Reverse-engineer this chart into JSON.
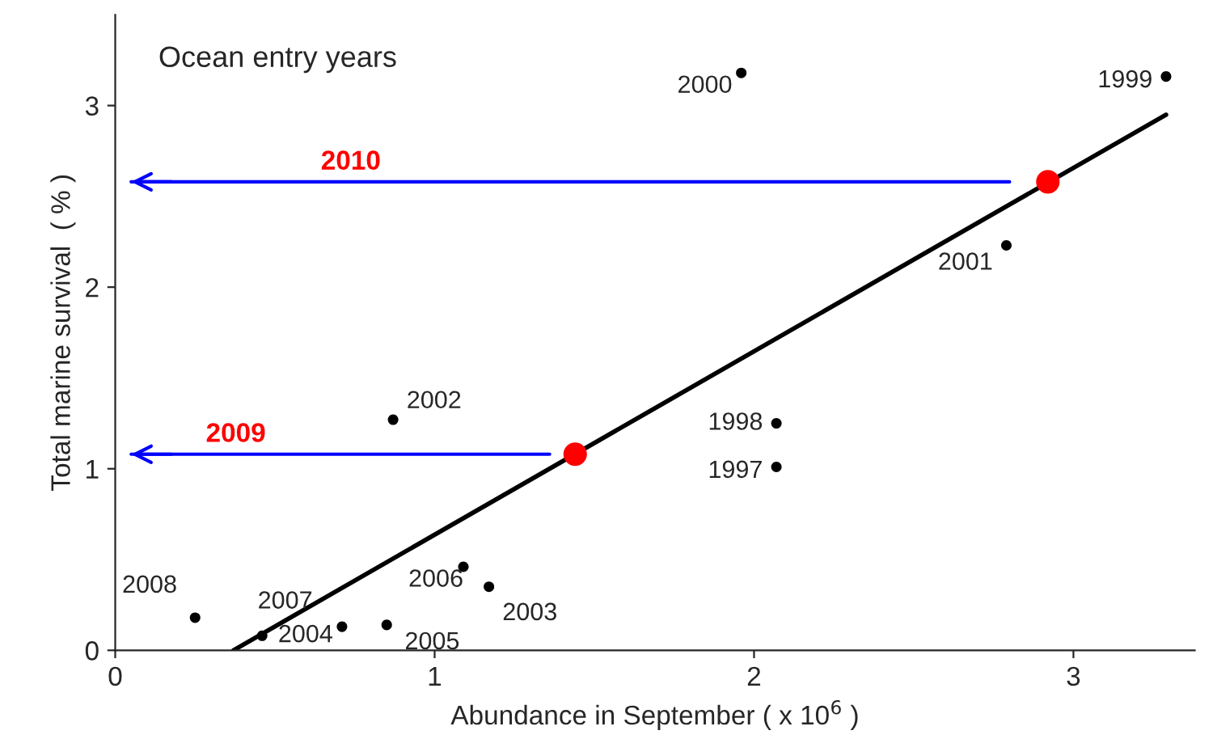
{
  "chart_data": {
    "type": "scatter",
    "xlabel": "Abundance in September ( x 10$^{6}$ )",
    "ylabel": "Total marine survival  ( % )",
    "xlim": [
      0,
      3.38
    ],
    "xticks": [
      0,
      1,
      2,
      3
    ],
    "ylim": [
      0,
      3.5
    ],
    "yticks": [
      0,
      1,
      2,
      3
    ],
    "grid": false,
    "marker": "circle",
    "series": [
      {
        "color": "#000000",
        "x": [
          2.07,
          2.07,
          3.29,
          1.96,
          2.79,
          0.87,
          1.17,
          0.71,
          0.85,
          1.09,
          0.46,
          0.25
        ],
        "values": [
          1.01,
          1.25,
          3.16,
          3.18,
          2.23,
          1.27,
          0.35,
          0.13,
          0.14,
          0.46,
          0.08,
          0.18
        ]
      },
      {
        "type": "line",
        "marker": "none",
        "color": "#000000",
        "x": [
          0.37,
          3.29
        ],
        "values": [
          0.0,
          2.95
        ]
      },
      {
        "type": "line",
        "name": "2009",
        "marker": "none",
        "color": "#0000ff",
        "x": [
          0.05,
          1.36
        ],
        "values": [
          1.08,
          1.08
        ]
      },
      {
        "type": "line",
        "name": "2010",
        "marker": "none",
        "color": "#0000ff",
        "x": [
          0.05,
          2.8
        ],
        "values": [
          2.58,
          2.58
        ]
      },
      {
        "color": "#ff0000",
        "x": [
          1.44,
          2.92
        ],
        "values": [
          1.08,
          2.58
        ]
      }
    ],
    "annotations": [
      "Ocean entry years",
      {
        "text": "1997",
        "x": 2.07,
        "y": 1.01
      },
      {
        "text": "1998",
        "x": 2.07,
        "y": 1.25
      },
      {
        "text": "1999",
        "x": 3.29,
        "y": 3.16
      },
      {
        "text": "2000",
        "x": 1.96,
        "y": 3.18
      },
      {
        "text": "2001",
        "x": 2.79,
        "y": 2.23
      },
      {
        "text": "2002",
        "x": 0.87,
        "y": 1.27
      },
      {
        "text": "2003",
        "x": 1.17,
        "y": 0.35
      },
      {
        "text": "2004",
        "x": 0.71,
        "y": 0.13
      },
      {
        "text": "2005",
        "x": 0.85,
        "y": 0.14
      },
      {
        "text": "2006",
        "x": 1.09,
        "y": 0.46
      },
      {
        "text": "2007",
        "x": 0.46,
        "y": 0.08
      },
      {
        "text": "2008",
        "x": 0.25,
        "y": 0.18
      }
    ]
  }
}
